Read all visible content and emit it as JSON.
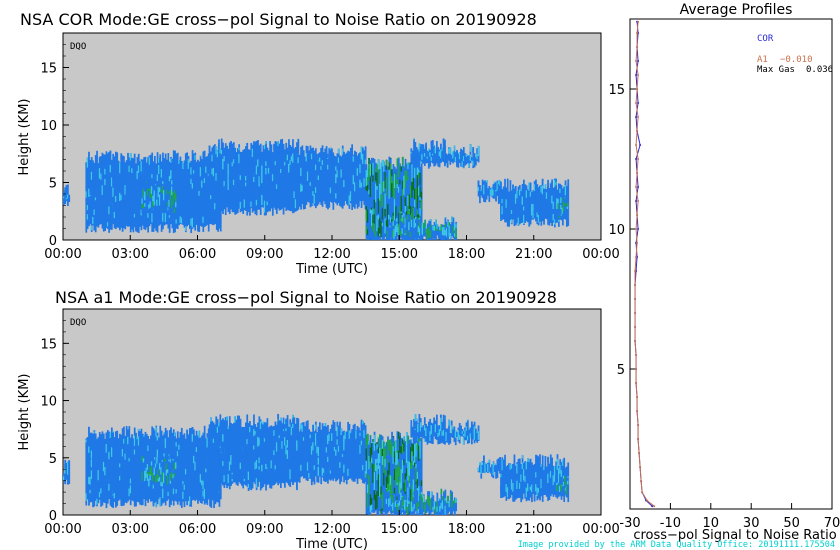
{
  "colors": {
    "plot_background": "#c8c8c8",
    "echo_blue": "#1f78e6",
    "echo_cyan": "#3ec8e8",
    "echo_green": "#1fa843",
    "echo_dark_green": "#0a6b1c",
    "profile_cor": "#2a2ad4",
    "profile_a1": "#c87050",
    "credit": "#00d0d0"
  },
  "chart_data": [
    {
      "type": "heatmap",
      "title": "NSA COR  Mode:GE cross−pol Signal to Noise Ratio  on 20190928",
      "panel_tag": "DQO",
      "xlabel": "Time (UTC)",
      "ylabel": "Height (KM)",
      "x_ticks": [
        "00:00",
        "03:00",
        "06:00",
        "09:00",
        "12:00",
        "15:00",
        "18:00",
        "21:00",
        "00:00"
      ],
      "y_ticks": [
        0,
        5,
        10,
        15
      ],
      "xlim_hours": [
        0,
        24
      ],
      "ylim_km": [
        0,
        18
      ],
      "cloud_layers": [
        {
          "t_start": 0.0,
          "t_end": 0.3,
          "base_km": 3.0,
          "top_km": 4.0,
          "intensity": "low"
        },
        {
          "t_start": 1.0,
          "t_end": 7.0,
          "base_km": 1.0,
          "top_km": 7.0,
          "intensity": "low"
        },
        {
          "t_start": 3.5,
          "t_end": 5.0,
          "base_km": 2.5,
          "top_km": 4.5,
          "intensity": "medium"
        },
        {
          "t_start": 6.5,
          "t_end": 10.5,
          "base_km": 2.5,
          "top_km": 8.0,
          "intensity": "low"
        },
        {
          "t_start": 9.5,
          "t_end": 13.5,
          "base_km": 3.0,
          "top_km": 7.5,
          "intensity": "low"
        },
        {
          "t_start": 13.5,
          "t_end": 16.0,
          "base_km": 0.0,
          "top_km": 6.5,
          "intensity": "high"
        },
        {
          "t_start": 14.5,
          "t_end": 17.5,
          "base_km": 0.0,
          "top_km": 1.5,
          "intensity": "medium"
        },
        {
          "t_start": 15.5,
          "t_end": 17.0,
          "base_km": 6.5,
          "top_km": 8.0,
          "intensity": "low"
        },
        {
          "t_start": 17.0,
          "t_end": 18.5,
          "base_km": 6.5,
          "top_km": 7.5,
          "intensity": "low"
        },
        {
          "t_start": 18.5,
          "t_end": 19.5,
          "base_km": 3.5,
          "top_km": 4.5,
          "intensity": "low"
        },
        {
          "t_start": 19.5,
          "t_end": 22.5,
          "base_km": 1.5,
          "top_km": 4.5,
          "intensity": "low"
        },
        {
          "t_start": 22.0,
          "t_end": 22.5,
          "base_km": 2.0,
          "top_km": 3.0,
          "intensity": "medium"
        }
      ]
    },
    {
      "type": "heatmap",
      "title": "NSA a1  Mode:GE cross−pol Signal to Noise Ratio  on 20190928",
      "panel_tag": "DQO",
      "xlabel": "Time (UTC)",
      "ylabel": "Height (KM)",
      "x_ticks": [
        "00:00",
        "03:00",
        "06:00",
        "09:00",
        "12:00",
        "15:00",
        "18:00",
        "21:00",
        "00:00"
      ],
      "y_ticks": [
        0,
        5,
        10,
        15
      ],
      "xlim_hours": [
        0,
        24
      ],
      "ylim_km": [
        0,
        18
      ],
      "cloud_layers": [
        {
          "t_start": 0.0,
          "t_end": 0.3,
          "base_km": 3.0,
          "top_km": 4.0,
          "intensity": "low"
        },
        {
          "t_start": 1.0,
          "t_end": 7.0,
          "base_km": 1.0,
          "top_km": 7.0,
          "intensity": "low"
        },
        {
          "t_start": 3.5,
          "t_end": 5.0,
          "base_km": 2.5,
          "top_km": 4.5,
          "intensity": "medium"
        },
        {
          "t_start": 6.5,
          "t_end": 10.5,
          "base_km": 2.5,
          "top_km": 8.0,
          "intensity": "low"
        },
        {
          "t_start": 9.5,
          "t_end": 13.5,
          "base_km": 3.0,
          "top_km": 7.5,
          "intensity": "low"
        },
        {
          "t_start": 13.5,
          "t_end": 16.0,
          "base_km": 0.0,
          "top_km": 6.5,
          "intensity": "high"
        },
        {
          "t_start": 14.5,
          "t_end": 17.5,
          "base_km": 0.0,
          "top_km": 1.5,
          "intensity": "medium"
        },
        {
          "t_start": 15.5,
          "t_end": 17.0,
          "base_km": 6.5,
          "top_km": 8.0,
          "intensity": "low"
        },
        {
          "t_start": 17.0,
          "t_end": 18.5,
          "base_km": 6.5,
          "top_km": 7.5,
          "intensity": "low"
        },
        {
          "t_start": 18.5,
          "t_end": 19.5,
          "base_km": 3.5,
          "top_km": 4.5,
          "intensity": "low"
        },
        {
          "t_start": 19.5,
          "t_end": 22.5,
          "base_km": 1.5,
          "top_km": 4.5,
          "intensity": "low"
        },
        {
          "t_start": 22.0,
          "t_end": 22.5,
          "base_km": 2.0,
          "top_km": 3.0,
          "intensity": "medium"
        }
      ]
    },
    {
      "type": "line",
      "title": "Average Profiles",
      "xlabel": "cross−pol Signal to Noise Ratio",
      "x_ticks": [
        -30,
        -10,
        10,
        30,
        50,
        70
      ],
      "y_ticks": [
        5,
        10,
        15
      ],
      "xlim": [
        -30,
        70
      ],
      "ylim": [
        0,
        17.5
      ],
      "legend": [
        {
          "label": "COR",
          "value": ""
        },
        {
          "label": "A1",
          "value": "−0.010"
        },
        {
          "label": "Max Gas",
          "value": "0.036"
        }
      ],
      "series": [
        {
          "name": "COR",
          "height_km": [
            0.1,
            0.3,
            0.6,
            1.0,
            1.5,
            2.0,
            2.5,
            3.0,
            3.5,
            4.0,
            4.5,
            5.0,
            5.5,
            6.0,
            6.5,
            7.0,
            7.5,
            8.0,
            8.5,
            9.0,
            9.5,
            10.0,
            10.5,
            11.0,
            11.5,
            12.0,
            12.5,
            13.0,
            13.5,
            14.0,
            14.5,
            15.0,
            15.5,
            16.0,
            16.5,
            17.0,
            17.4
          ],
          "snr": [
            -19,
            -22,
            -24,
            -24.5,
            -25,
            -25.5,
            -26,
            -26,
            -26.5,
            -26.5,
            -27,
            -27,
            -27,
            -27.5,
            -27.5,
            -27.5,
            -27.5,
            -27.5,
            -27,
            -26.5,
            -27,
            -26,
            -26.5,
            -27,
            -26,
            -26.5,
            -27,
            -25,
            -26.5,
            -27,
            -26,
            -26.5,
            -27,
            -26,
            -26.5,
            -26,
            -26.5
          ]
        },
        {
          "name": "A1",
          "height_km": [
            0.1,
            0.3,
            0.6,
            1.0,
            1.5,
            2.0,
            2.5,
            3.0,
            3.5,
            4.0,
            4.5,
            5.0,
            5.5,
            6.0,
            6.5,
            7.0,
            7.5,
            8.0,
            8.5,
            9.0,
            9.5,
            10.0,
            10.5,
            11.0,
            11.5,
            12.0,
            12.5,
            13.0,
            13.5,
            14.0,
            14.5,
            15.0,
            15.5,
            16.0,
            16.5,
            17.0,
            17.4
          ],
          "snr": [
            -18,
            -21.5,
            -24,
            -24.5,
            -25,
            -25.5,
            -26,
            -26,
            -26.5,
            -26.5,
            -27,
            -27,
            -27,
            -27.5,
            -27.5,
            -27.5,
            -27.5,
            -27.5,
            -27.5,
            -27,
            -26.5,
            -27,
            -26.5,
            -26,
            -27,
            -26.5,
            -26,
            -27,
            -26.5,
            -26,
            -27,
            -26.5,
            -26,
            -27,
            -26.5,
            -26.5,
            -26
          ]
        }
      ]
    }
  ],
  "footer": {
    "credit": "Image provided by the ARM Data Quality Office: 20191111.175504"
  }
}
